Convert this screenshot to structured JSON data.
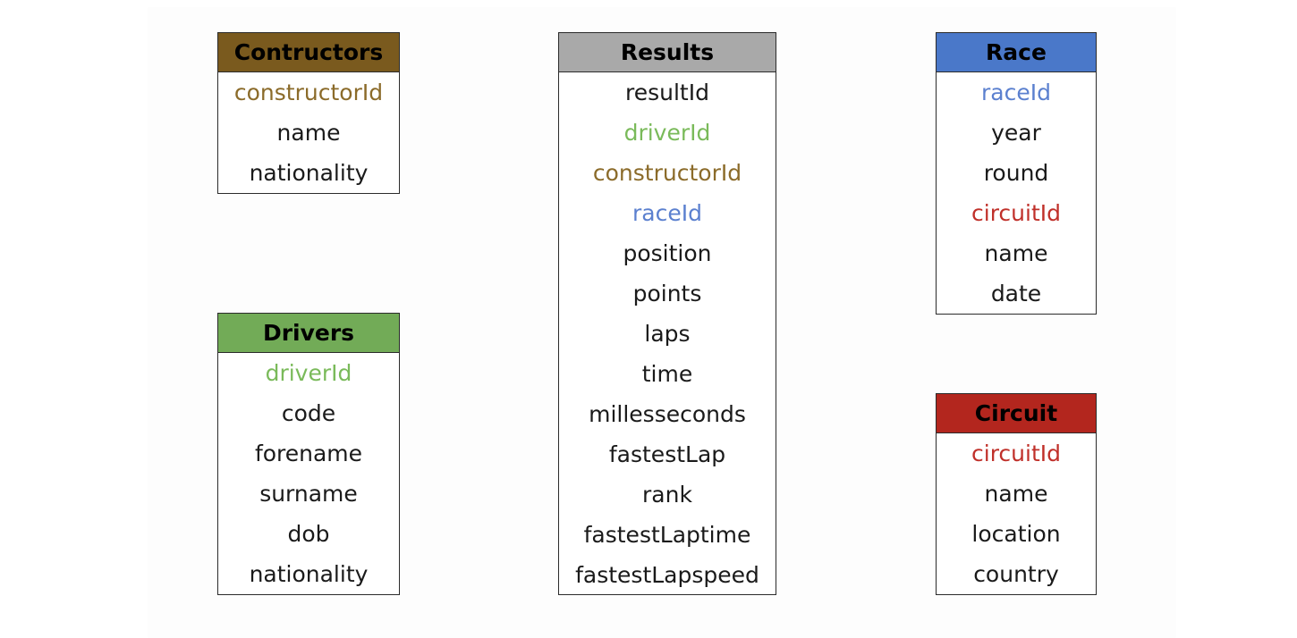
{
  "colors": {
    "contructors_header": "#7a5a1e",
    "results_header": "#a9a9a9",
    "race_header": "#4a78c9",
    "drivers_header": "#72ab57",
    "circuit_header": "#b3261e",
    "constructorId": "#8b6b2a",
    "driverId": "#7aba5a",
    "raceId": "#5b80cf",
    "circuitId": "#c0302a",
    "plain": "#1a1a1a"
  },
  "tables": {
    "contructors": {
      "title": "Contructors",
      "fields": [
        "constructorId",
        "name",
        "nationality"
      ]
    },
    "drivers": {
      "title": "Drivers",
      "fields": [
        "driverId",
        "code",
        "forename",
        "surname",
        "dob",
        "nationality"
      ]
    },
    "results": {
      "title": "Results",
      "fields": [
        "resultId",
        "driverId",
        "constructorId",
        "raceId",
        "position",
        "points",
        "laps",
        "time",
        "millesseconds",
        "fastestLap",
        "rank",
        "fastestLaptime",
        "fastestLapspeed"
      ]
    },
    "race": {
      "title": "Race",
      "fields": [
        "raceId",
        "year",
        "round",
        "circuitId",
        "name",
        "date"
      ]
    },
    "circuit": {
      "title": "Circuit",
      "fields": [
        "circuitId",
        "name",
        "location",
        "country"
      ]
    }
  }
}
